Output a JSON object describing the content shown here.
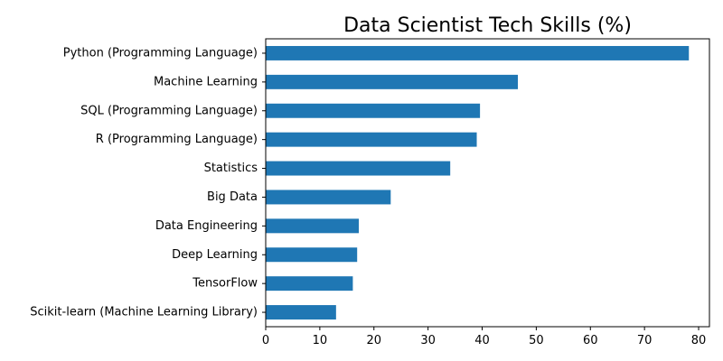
{
  "chart_data": {
    "type": "bar",
    "orientation": "horizontal",
    "title": "Data Scientist Tech Skills (%)",
    "xlabel": "",
    "ylabel": "",
    "categories": [
      "Python (Programming Language)",
      "Machine Learning",
      "SQL (Programming Language)",
      "R (Programming Language)",
      "Statistics",
      "Big Data",
      "Data Engineering",
      "Deep Learning",
      "TensorFlow",
      "Scikit-learn (Machine Learning Library)"
    ],
    "values": [
      78.2,
      46.6,
      39.6,
      39.0,
      34.1,
      23.1,
      17.2,
      16.9,
      16.1,
      13.0
    ],
    "xlim": [
      0,
      82
    ],
    "xticks": [
      0,
      10,
      20,
      30,
      40,
      50,
      60,
      70,
      80
    ],
    "grid": false,
    "bar_color": "#1f77b4"
  }
}
